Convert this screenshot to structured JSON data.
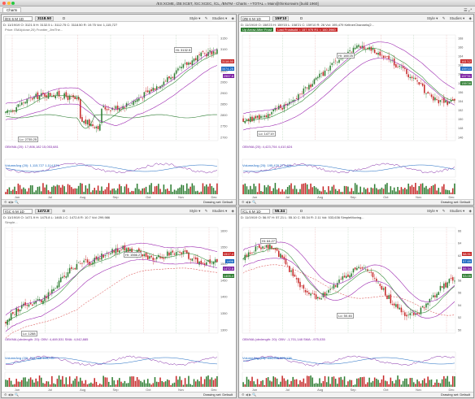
{
  "window": {
    "title": "/ES:XCME, /ZB:XCBT, /GC:XCEC, /CL, /BN7M - Charts - +TOTAL = Main@thinkorswim [build 1960]"
  },
  "tabbar": {
    "tab": "Charts"
  },
  "colors": {
    "up": "#2e7d32",
    "down": "#c62828",
    "volup": "#2e7d32",
    "voldn": "#c62828",
    "violet": "#9c27b0",
    "blue": "#1565c0"
  },
  "panels": [
    {
      "symbol": "/ES 6 M 1D",
      "price": "3118.50",
      "timeframe": "D",
      "info": "D: 11/19/19  O: 3121.5  H: 3132.5  L: 3112.75  C: 3118.50  R: 19.75  Vol: 1,115,727",
      "study": "Price: EMA(close,20)  Frontier_JimThe...",
      "hi": "Hi: 3132.5",
      "lo": "Lo: 2735.25",
      "osc": "OBVMA (20): 17,806,182  15,053,681",
      "vol": "VolumeAvg (20): 1,115,727  1,114,574",
      "badges": [
        "3118.50",
        "3074.25",
        "2957.6"
      ],
      "y_ticks": [
        "3150",
        "3100",
        "3050",
        "3000",
        "2950",
        "2900",
        "2850",
        "2800",
        "2750",
        "2700"
      ],
      "x_ticks": [
        "Jun",
        "Jul",
        "Aug",
        "Sep",
        "Oct",
        "Nov",
        "Dec"
      ],
      "drawing": "Drawing set: Default"
    },
    {
      "symbol": "/ZB 6 M 1D",
      "price": "159'10",
      "timeframe": "D",
      "info": "D: 11/19/19  O: 158'23  H: 159'15  L: 158'21  C: 159'10  R: 26  Vol: 195,479  KeltnerChannels(2...",
      "study": "Last Frostsold = 157.975  R1 = 160.3960",
      "studyHdr": "Up Arrow After Frost",
      "hi": "Hi: 166'25",
      "lo": "Lo: 147'19",
      "osc": "OBVMA (20): 4,423,704  4,410,624",
      "vol": "VolumeAvg (20): 195,479  273,421",
      "badges": [
        "161'12",
        "159'10",
        "157'31",
        "155'28"
      ],
      "y_ticks": [
        "168",
        "166",
        "164",
        "162",
        "160",
        "158",
        "156",
        "154",
        "152",
        "150",
        "148",
        "146"
      ],
      "x_ticks": [
        "Jun",
        "Jul",
        "Aug",
        "Sep",
        "Oct",
        "Nov",
        "Dec"
      ],
      "drawing": "Drawing set: Default"
    },
    {
      "symbol": "/GC 6 M 1D",
      "price": "1472.8",
      "timeframe": "D",
      "info": "D: 11/19/19  O: 1471.9  H: 1475.8  L: 1465.1  C: 1472.8  R: 10.7  Vol: 299,986",
      "study": "Simple...",
      "hi": "Hi: 1566.2",
      "lo": "Lo: 1288",
      "osc": "OBVMA (obvlength: 20): OBV: 4,469,531  SMA: 4,042,885",
      "vol": "VolumeAvg (20): 299,986  393,739",
      "badges": [
        "1517.4",
        "1496",
        "1472.8",
        "1405.4"
      ],
      "y_ticks": [
        "1600",
        "1550",
        "1500",
        "1450",
        "1400",
        "1350",
        "1300"
      ],
      "x_ticks": [
        "Jun",
        "Jul",
        "Aug",
        "Sep",
        "Oct",
        "Nov",
        "Dec"
      ],
      "drawing": "Drawing set: Default"
    },
    {
      "symbol": "/CL 6 M 1D",
      "price": "55.34",
      "timeframe": "D",
      "info": "D: 11/19/19  O: 56.97  H: 57.21  L: 55.10  C: 55.34  R: 2.11  Vol: 533,636  SimpleMoving...",
      "study": "",
      "hi": "Hi: 64.27",
      "lo": "Lo: 50.46",
      "osc": "OBVMA (obvlength: 20): OBV: -1,701,148  SMA: -975,035",
      "vol": "VolumeAvg (20): 533,636  520,138",
      "badges": [
        "58.91",
        "57.69",
        "55.34",
        "53.05"
      ],
      "y_ticks": [
        "66",
        "64",
        "62",
        "60",
        "58",
        "56",
        "54",
        "52",
        "50"
      ],
      "x_ticks": [
        "Jun",
        "Jul",
        "Aug",
        "Sep",
        "Oct",
        "Nov",
        "Dec"
      ],
      "drawing": "Drawing set: Default"
    }
  ]
}
